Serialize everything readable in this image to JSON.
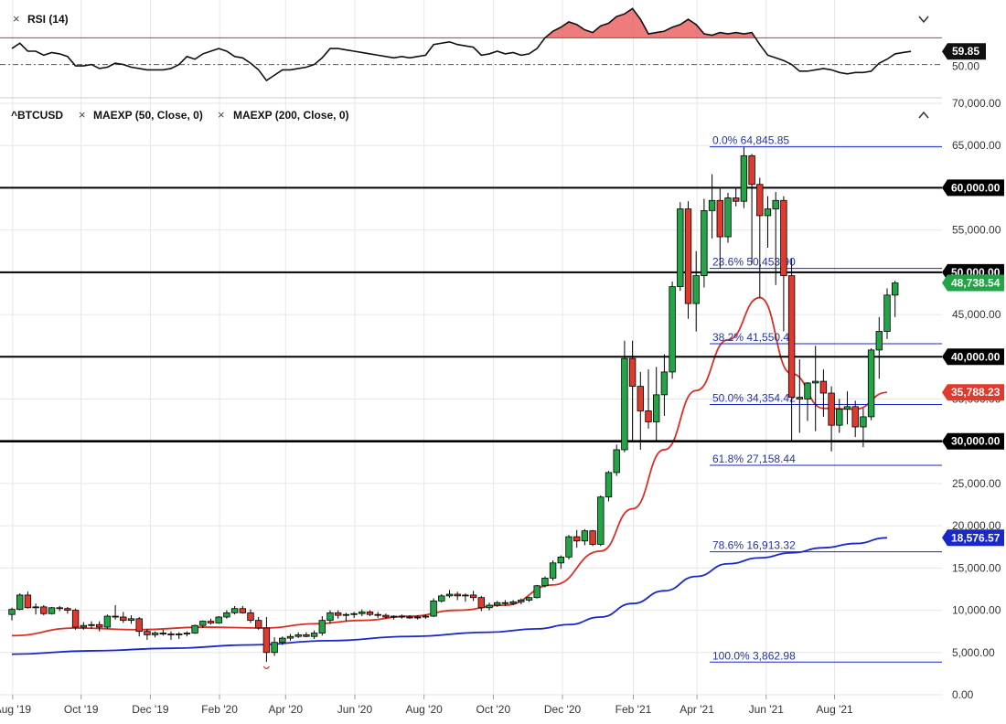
{
  "rsi_panel": {
    "title": "RSI (14)",
    "close_glyph": "×",
    "collapse_icon": "chevron-down-icon",
    "value_badge": "59.85",
    "mid_label": "50.00"
  },
  "price_panel": {
    "symbol": "^BTCUSD",
    "studies": [
      {
        "label": "MAEXP (50, Close, 0)"
      },
      {
        "label": "MAEXP (200, Close, 0)"
      }
    ],
    "close_glyph": "×",
    "collapse_icon": "chevron-up-icon"
  },
  "chart_data": [
    {
      "type": "candlestick",
      "title": "^BTCUSD",
      "ylim": [
        0,
        70000
      ],
      "y_ticks": [
        "0.00",
        "5,000.00",
        "10,000.00",
        "15,000.00",
        "20,000.00",
        "25,000.00",
        "30,000.00",
        "35,000.00",
        "40,000.00",
        "45,000.00",
        "50,000.00",
        "55,000.00",
        "60,000.00",
        "65,000.00",
        "70,000.00"
      ],
      "x_ticks": [
        "Aug '19",
        "Oct '19",
        "Dec '19",
        "Feb '20",
        "Apr '20",
        "Jun '20",
        "Aug '20",
        "Oct '20",
        "Dec '20",
        "Feb '21",
        "Apr '21",
        "Jun '21",
        "Aug '21"
      ],
      "x_tick_positions": [
        0.1,
        8.7,
        17.4,
        26.1,
        34.4,
        43.1,
        51.8,
        60.5,
        69.2,
        78.1,
        86.1,
        94.8,
        103.4
      ],
      "candles_ohlc": [
        [
          9500,
          10300,
          8800,
          10100
        ],
        [
          10100,
          12000,
          10000,
          11800
        ],
        [
          11800,
          12200,
          10200,
          10300
        ],
        [
          10300,
          10800,
          9500,
          10400
        ],
        [
          10400,
          10600,
          9400,
          9600
        ],
        [
          9600,
          10400,
          9500,
          10300
        ],
        [
          10300,
          10500,
          9900,
          10200
        ],
        [
          10200,
          10400,
          9600,
          10000
        ],
        [
          10000,
          10200,
          7700,
          8000
        ],
        [
          8000,
          8600,
          7700,
          8200
        ],
        [
          8200,
          8700,
          7800,
          8300
        ],
        [
          8300,
          8700,
          7500,
          8000
        ],
        [
          8000,
          9500,
          7800,
          9300
        ],
        [
          9300,
          10600,
          8900,
          9200
        ],
        [
          9200,
          9800,
          8500,
          8800
        ],
        [
          8800,
          9400,
          8400,
          9000
        ],
        [
          9000,
          9200,
          6900,
          7500
        ],
        [
          7500,
          7800,
          6500,
          7100
        ],
        [
          7100,
          7500,
          6800,
          7300
        ],
        [
          7300,
          7700,
          7000,
          7200
        ],
        [
          7200,
          7500,
          6500,
          7100
        ],
        [
          7100,
          7400,
          6600,
          7200
        ],
        [
          7200,
          7500,
          6900,
          7300
        ],
        [
          7300,
          8300,
          7200,
          8200
        ],
        [
          8200,
          8800,
          7900,
          8700
        ],
        [
          8700,
          9000,
          8300,
          8500
        ],
        [
          8500,
          9300,
          8400,
          9200
        ],
        [
          9200,
          10000,
          9000,
          9700
        ],
        [
          9700,
          10500,
          9500,
          10200
        ],
        [
          10200,
          10500,
          9600,
          9700
        ],
        [
          9700,
          10100,
          8500,
          8800
        ],
        [
          8800,
          9200,
          7700,
          7900
        ],
        [
          7900,
          9200,
          3900,
          5000
        ],
        [
          5000,
          6800,
          4600,
          6200
        ],
        [
          6200,
          6900,
          5900,
          6700
        ],
        [
          6700,
          7200,
          6400,
          6900
        ],
        [
          6900,
          7400,
          6700,
          7100
        ],
        [
          7100,
          7400,
          6800,
          6900
        ],
        [
          6900,
          7600,
          6600,
          7300
        ],
        [
          7300,
          9300,
          7000,
          8800
        ],
        [
          8800,
          10000,
          8400,
          9700
        ],
        [
          9700,
          10000,
          9000,
          9400
        ],
        [
          9400,
          9700,
          8700,
          9500
        ],
        [
          9500,
          9800,
          9100,
          9600
        ],
        [
          9600,
          10100,
          9300,
          9800
        ],
        [
          9800,
          10000,
          9300,
          9500
        ],
        [
          9500,
          9800,
          9100,
          9400
        ],
        [
          9400,
          9600,
          9000,
          9200
        ],
        [
          9200,
          9400,
          8900,
          9300
        ],
        [
          9300,
          9500,
          9000,
          9200
        ],
        [
          9200,
          9400,
          9000,
          9100
        ],
        [
          9100,
          9400,
          8900,
          9200
        ],
        [
          9200,
          9500,
          9000,
          9300
        ],
        [
          9300,
          11400,
          9200,
          11100
        ],
        [
          11100,
          11900,
          10900,
          11700
        ],
        [
          11700,
          12400,
          11500,
          11900
        ],
        [
          11900,
          12200,
          11200,
          11700
        ],
        [
          11700,
          12000,
          11000,
          11800
        ],
        [
          11800,
          12300,
          11100,
          11500
        ],
        [
          11500,
          11700,
          9900,
          10300
        ],
        [
          10300,
          10900,
          10000,
          10600
        ],
        [
          10600,
          11100,
          10400,
          10900
        ],
        [
          10900,
          11200,
          10500,
          10800
        ],
        [
          10800,
          11200,
          10600,
          11000
        ],
        [
          11000,
          11400,
          10700,
          11200
        ],
        [
          11200,
          11600,
          11000,
          11500
        ],
        [
          11500,
          13000,
          11400,
          12900
        ],
        [
          12900,
          14000,
          12700,
          13800
        ],
        [
          13800,
          15900,
          13500,
          15600
        ],
        [
          15600,
          16500,
          14900,
          16300
        ],
        [
          16300,
          18900,
          16000,
          18700
        ],
        [
          18700,
          19500,
          17400,
          18200
        ],
        [
          18200,
          19600,
          17700,
          19400
        ],
        [
          19400,
          19500,
          17600,
          17800
        ],
        [
          17800,
          23600,
          17600,
          23400
        ],
        [
          23400,
          26500,
          22900,
          26300
        ],
        [
          26300,
          29600,
          25900,
          29000
        ],
        [
          29000,
          41900,
          28700,
          39800
        ],
        [
          39800,
          41900,
          30000,
          36500
        ],
        [
          36500,
          38200,
          29000,
          33600
        ],
        [
          33600,
          38500,
          31500,
          32300
        ],
        [
          32300,
          38800,
          29900,
          35500
        ],
        [
          35500,
          40300,
          33000,
          38200
        ],
        [
          38200,
          48900,
          37400,
          48300
        ],
        [
          48300,
          58300,
          47800,
          57500
        ],
        [
          57500,
          58400,
          44500,
          46300
        ],
        [
          46300,
          52500,
          43000,
          49600
        ],
        [
          49600,
          58700,
          48200,
          57300
        ],
        [
          57300,
          61600,
          54000,
          58500
        ],
        [
          58500,
          59900,
          50500,
          54200
        ],
        [
          54200,
          59400,
          53500,
          58800
        ],
        [
          58800,
          60000,
          57800,
          58400
        ],
        [
          58400,
          64800,
          57600,
          63800
        ],
        [
          63800,
          64000,
          51000,
          60400
        ],
        [
          60400,
          61200,
          47000,
          56700
        ],
        [
          56700,
          59000,
          52900,
          57500
        ],
        [
          57500,
          59500,
          48500,
          58500
        ],
        [
          58500,
          59000,
          43000,
          49600
        ],
        [
          49600,
          51600,
          30000,
          35200
        ],
        [
          35200,
          39700,
          31000,
          35000
        ],
        [
          35000,
          37000,
          32400,
          36900
        ],
        [
          36900,
          41300,
          31200,
          37100
        ],
        [
          37100,
          38500,
          32900,
          35700
        ],
        [
          35700,
          36500,
          28800,
          31900
        ],
        [
          31900,
          35000,
          31000,
          33800
        ],
        [
          33800,
          35900,
          32000,
          34100
        ],
        [
          34100,
          34800,
          30500,
          31700
        ],
        [
          31700,
          33900,
          29300,
          32900
        ],
        [
          32900,
          41000,
          32500,
          40800
        ],
        [
          40800,
          44700,
          37400,
          43000
        ],
        [
          43000,
          48100,
          42100,
          47300
        ],
        [
          47300,
          49000,
          44700,
          48738.54
        ]
      ],
      "series": [
        {
          "name": "MAEXP (50, Close, 0)",
          "color": "#d93025",
          "last_value": 35788.23,
          "anchors_x": [
            0,
            8,
            16,
            24,
            32,
            38,
            44,
            50,
            56,
            62,
            68,
            74,
            78,
            82,
            86,
            90,
            94,
            98,
            102,
            106,
            110
          ],
          "anchors_y": [
            7000,
            7900,
            7700,
            8000,
            7900,
            8400,
            8800,
            9300,
            10000,
            10600,
            13000,
            17000,
            22000,
            29000,
            36000,
            42000,
            47000,
            38000,
            33900,
            33800,
            35788.23
          ]
        },
        {
          "name": "MAEXP (200, Close, 0)",
          "color": "#1a27c9",
          "last_value": 18576.57,
          "anchors_x": [
            0,
            10,
            20,
            30,
            40,
            50,
            60,
            66,
            70,
            74,
            78,
            82,
            86,
            90,
            94,
            98,
            102,
            106,
            110
          ],
          "anchors_y": [
            4800,
            5200,
            5500,
            5900,
            6400,
            6900,
            7400,
            7800,
            8300,
            9200,
            10800,
            12300,
            14000,
            15500,
            16200,
            16800,
            17400,
            17900,
            18576.57
          ]
        }
      ],
      "last_price": 48738.54,
      "horizontal_levels": [
        {
          "value": 30000,
          "label": "30,000.00"
        },
        {
          "value": 40000,
          "label": "40,000.00"
        },
        {
          "value": 50000,
          "label": "50,000.00"
        },
        {
          "value": 60000,
          "label": "60,000.00"
        }
      ],
      "fibonacci": [
        {
          "label": "0.0% 64,845.85",
          "value": 64845.85
        },
        {
          "label": "23.6% 50,453.90",
          "value": 50453.9
        },
        {
          "label": "38.2% 41,550.40",
          "value": 41550.4
        },
        {
          "label": "50.0% 34,354.42",
          "value": 34354.42
        },
        {
          "label": "61.8% 27,158.44",
          "value": 27158.44
        },
        {
          "label": "78.6% 16,913.32",
          "value": 16913.32
        },
        {
          "label": "100.0% 3,862.98",
          "value": 3862.98
        }
      ],
      "badges": [
        {
          "value": 60000,
          "label": "60,000.00",
          "color": "#000000"
        },
        {
          "value": 50000,
          "label": "50,000.00",
          "color": "#000000"
        },
        {
          "value": 48738.54,
          "label": "48,738.54",
          "color": "#22a447"
        },
        {
          "value": 40000,
          "label": "40,000.00",
          "color": "#000000"
        },
        {
          "value": 35788.23,
          "label": "35,788.23",
          "color": "#e03a2f"
        },
        {
          "value": 30000,
          "label": "30,000.00",
          "color": "#000000"
        },
        {
          "value": 18576.57,
          "label": "18,576.57",
          "color": "#1a27c9"
        }
      ],
      "colors": {
        "up": "#22a447",
        "down": "#e03a2f",
        "level": "#000000",
        "fib": "#1a27c9",
        "grid": "#e6e6e6"
      }
    },
    {
      "type": "line",
      "title": "RSI (14)",
      "ylim": [
        25,
        95
      ],
      "overbought": 70,
      "midline": 50,
      "values": [
        62,
        66,
        60,
        60,
        57,
        59,
        58,
        56,
        49,
        49,
        50,
        47,
        48,
        51,
        50,
        48,
        47,
        46,
        46,
        46,
        47,
        50,
        56,
        54,
        58,
        60,
        62,
        60,
        56,
        55,
        51,
        46,
        38,
        42,
        46,
        46,
        47,
        48,
        50,
        55,
        62,
        62,
        61,
        60,
        59,
        58,
        57,
        56,
        55,
        56,
        55,
        56,
        57,
        65,
        66,
        67,
        65,
        64,
        63,
        57,
        58,
        60,
        58,
        59,
        57,
        58,
        62,
        70,
        75,
        78,
        82,
        80,
        76,
        74,
        79,
        81,
        86,
        88,
        92,
        84,
        73,
        74,
        75,
        78,
        80,
        84,
        80,
        73,
        72,
        74,
        73,
        74,
        73,
        74,
        65,
        57,
        55,
        53,
        50,
        45,
        45,
        46,
        47,
        46,
        44,
        43,
        44,
        44,
        45,
        51,
        54,
        58,
        59,
        59.85
      ],
      "colors": {
        "line": "#111111",
        "overbought_fill": "#e85050",
        "overbought_line": "#c0392b",
        "midline": "#666666"
      }
    }
  ]
}
